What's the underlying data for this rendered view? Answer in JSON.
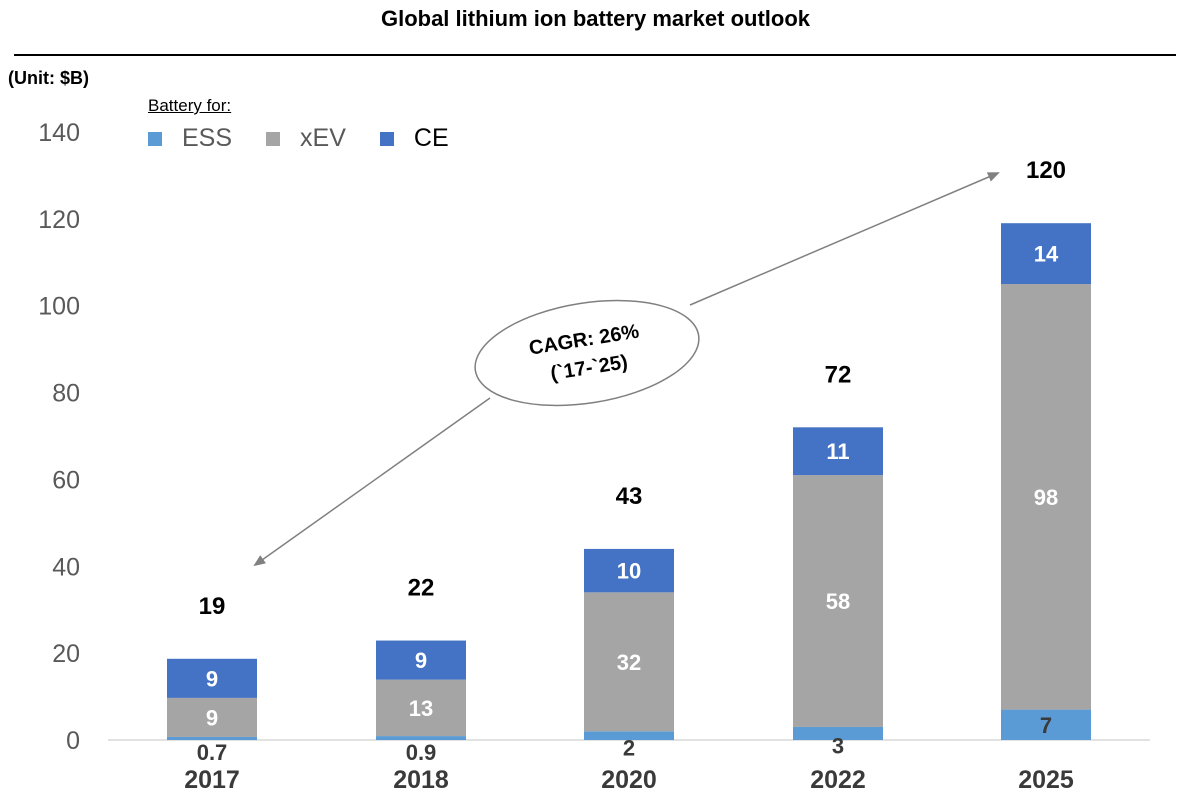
{
  "header": {
    "title": "Global lithium ion battery market outlook",
    "unit": "(Unit: $B)",
    "legend_title": "Battery for:"
  },
  "colors": {
    "ESS": "#5b9bd5",
    "xEV": "#a5a5a5",
    "CE": "#4472c4",
    "arrow": "#808080"
  },
  "chart_data": {
    "type": "bar",
    "stacked": true,
    "title": "Global lithium ion battery market outlook",
    "ylabel": "(Unit: $B)",
    "xlabel": "",
    "ylim": [
      0,
      140
    ],
    "yticks": [
      0,
      20,
      40,
      60,
      80,
      100,
      120,
      140
    ],
    "categories": [
      "2017",
      "2018",
      "2020",
      "2022",
      "2025"
    ],
    "series": [
      {
        "name": "ESS",
        "values": [
          0.7,
          0.9,
          2,
          3,
          7
        ],
        "labels": [
          "0.7",
          "0.9",
          "2",
          "3",
          "7"
        ]
      },
      {
        "name": "xEV",
        "values": [
          9,
          13,
          32,
          58,
          98
        ],
        "labels": [
          "9",
          "13",
          "32",
          "58",
          "98"
        ]
      },
      {
        "name": "CE",
        "values": [
          9,
          9,
          10,
          11,
          14
        ],
        "labels": [
          "9",
          "9",
          "10",
          "11",
          "14"
        ]
      }
    ],
    "totals": [
      "19",
      "22",
      "43",
      "72",
      "120"
    ],
    "legend": {
      "title": "Battery for:",
      "placement": "top-left"
    },
    "annotation": {
      "line1": "CAGR: 26%",
      "line2": "(`17-`25)"
    }
  }
}
